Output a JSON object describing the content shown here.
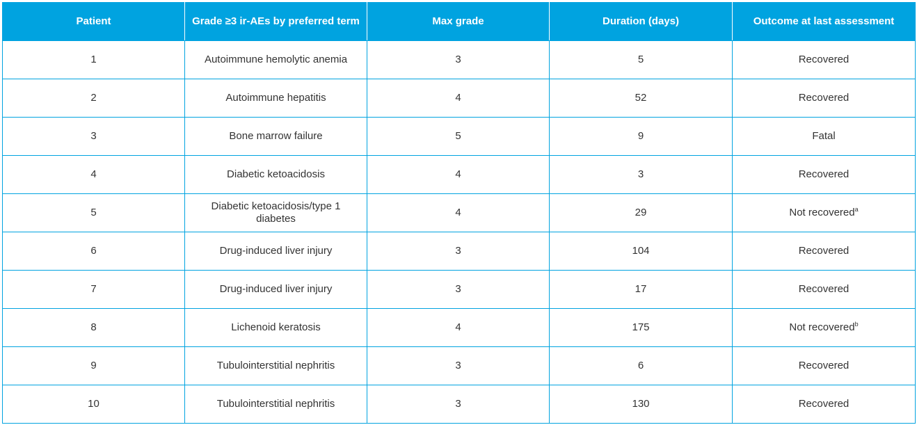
{
  "table": {
    "headers": [
      "Patient",
      "Grade ≥3 ir-AEs by preferred term",
      "Max grade",
      "Duration (days)",
      "Outcome at last assessment"
    ],
    "rows": [
      {
        "patient": "1",
        "term": "Autoimmune hemolytic anemia",
        "max_grade": "3",
        "duration": "5",
        "outcome": "Recovered",
        "footnote": ""
      },
      {
        "patient": "2",
        "term": "Autoimmune hepatitis",
        "max_grade": "4",
        "duration": "52",
        "outcome": "Recovered",
        "footnote": ""
      },
      {
        "patient": "3",
        "term": "Bone marrow failure",
        "max_grade": "5",
        "duration": "9",
        "outcome": "Fatal",
        "footnote": ""
      },
      {
        "patient": "4",
        "term": "Diabetic ketoacidosis",
        "max_grade": "4",
        "duration": "3",
        "outcome": "Recovered",
        "footnote": ""
      },
      {
        "patient": "5",
        "term": "Diabetic ketoacidosis/type 1 diabetes",
        "max_grade": "4",
        "duration": "29",
        "outcome": "Not recovered",
        "footnote": "a"
      },
      {
        "patient": "6",
        "term": "Drug-induced liver injury",
        "max_grade": "3",
        "duration": "104",
        "outcome": "Recovered",
        "footnote": ""
      },
      {
        "patient": "7",
        "term": "Drug-induced liver injury",
        "max_grade": "3",
        "duration": "17",
        "outcome": "Recovered",
        "footnote": ""
      },
      {
        "patient": "8",
        "term": "Lichenoid keratosis",
        "max_grade": "4",
        "duration": "175",
        "outcome": "Not recovered",
        "footnote": "b"
      },
      {
        "patient": "9",
        "term": "Tubulointerstitial nephritis",
        "max_grade": "3",
        "duration": "6",
        "outcome": "Recovered",
        "footnote": ""
      },
      {
        "patient": "10",
        "term": "Tubulointerstitial nephritis",
        "max_grade": "3",
        "duration": "130",
        "outcome": "Recovered",
        "footnote": ""
      }
    ]
  },
  "colors": {
    "header_bg": "#00a3e0",
    "border": "#00a3e0",
    "header_text": "#ffffff",
    "body_text": "#333333"
  }
}
